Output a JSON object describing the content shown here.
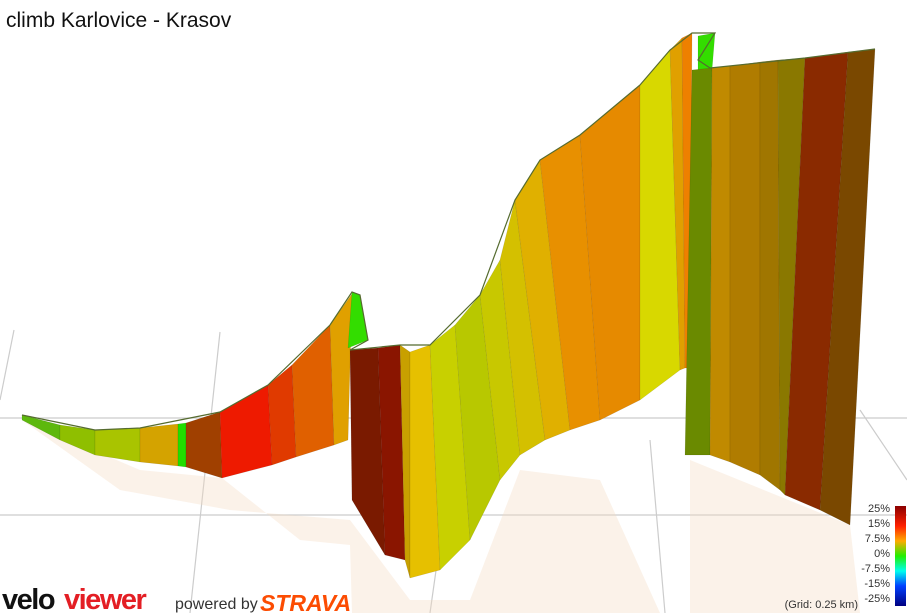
{
  "header": {
    "title": "climb Karlovice - Krasov"
  },
  "legend": {
    "labels": [
      "25%",
      "15%",
      "7.5%",
      "0%",
      "-7.5%",
      "-15%",
      "-25%"
    ]
  },
  "footer": {
    "grid_note": "(Grid: 0.25 km)",
    "brand_velo": "velo",
    "brand_viewer": "viewer",
    "powered_by": "powered by",
    "strava": "STRAVA"
  }
}
